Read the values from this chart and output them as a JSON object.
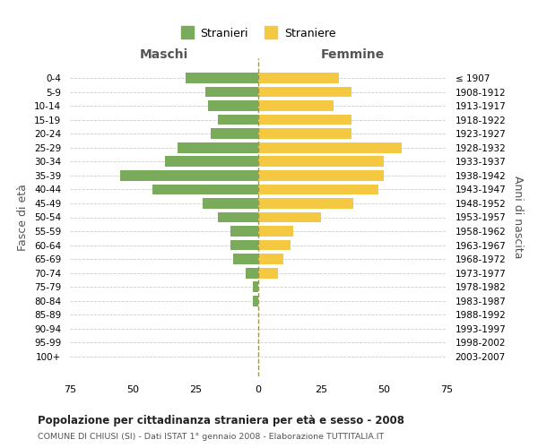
{
  "age_groups": [
    "0-4",
    "5-9",
    "10-14",
    "15-19",
    "20-24",
    "25-29",
    "30-34",
    "35-39",
    "40-44",
    "45-49",
    "50-54",
    "55-59",
    "60-64",
    "65-69",
    "70-74",
    "75-79",
    "80-84",
    "85-89",
    "90-94",
    "95-99",
    "100+"
  ],
  "birth_years": [
    "2003-2007",
    "1998-2002",
    "1993-1997",
    "1988-1992",
    "1983-1987",
    "1978-1982",
    "1973-1977",
    "1968-1972",
    "1963-1967",
    "1958-1962",
    "1953-1957",
    "1948-1952",
    "1943-1947",
    "1938-1942",
    "1933-1937",
    "1928-1932",
    "1923-1927",
    "1918-1922",
    "1913-1917",
    "1908-1912",
    "≤ 1907"
  ],
  "maschi": [
    29,
    21,
    20,
    16,
    19,
    32,
    37,
    55,
    42,
    22,
    16,
    11,
    11,
    10,
    5,
    2,
    2,
    0,
    0,
    0,
    0
  ],
  "femmine": [
    32,
    37,
    30,
    37,
    37,
    57,
    50,
    50,
    48,
    38,
    25,
    14,
    13,
    10,
    8,
    0,
    0,
    0,
    0,
    0,
    0
  ],
  "color_maschi": "#7aab5a",
  "color_femmine": "#f5c842",
  "title_maschi": "Maschi",
  "title_femmine": "Femmine",
  "legend_maschi": "Stranieri",
  "legend_femmine": "Straniere",
  "ylabel_left": "Fasce di età",
  "ylabel_right": "Anni di nascita",
  "xlim": 75,
  "title": "Popolazione per cittadinanza straniera per età e sesso - 2008",
  "subtitle": "COMUNE DI CHIUSI (SI) - Dati ISTAT 1° gennaio 2008 - Elaborazione TUTTITALIA.IT",
  "background_color": "#ffffff",
  "grid_color": "#cccccc"
}
